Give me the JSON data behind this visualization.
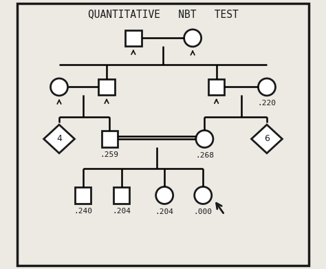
{
  "title": "QUANTITATIVE   NBT   TEST",
  "title_fontsize": 10.5,
  "bg_color": "#ede9e3",
  "border_color": "#1a1a1a",
  "symbol_color": "#1a1a1a",
  "symbol_lw": 2.0,
  "line_lw": 1.8,
  "figsize": [
    4.74,
    3.91
  ],
  "dpi": 100,
  "labels": {
    "rci_gen2": ".220",
    "lsq_gen3": ".259",
    "rci_gen3": ".268",
    "sq1_gen4": ".240",
    "sq2_gen4": ".204",
    "ci1_gen4": ".204",
    "ci2_gen4": ".000"
  }
}
